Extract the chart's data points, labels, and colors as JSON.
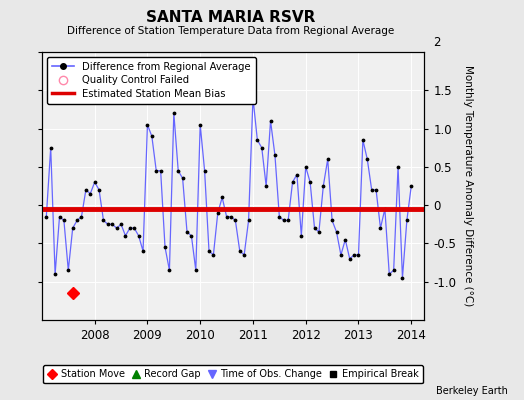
{
  "title": "SANTA MARIA RSVR",
  "subtitle": "Difference of Station Temperature Data from Regional Average",
  "ylabel": "Monthly Temperature Anomaly Difference (°C)",
  "xlim": [
    2007.0,
    2014.25
  ],
  "ylim": [
    -1.5,
    2.0
  ],
  "yticks_right": [
    -1.0,
    -0.5,
    0.0,
    0.5,
    1.0,
    1.5
  ],
  "ytick_top": 2.0,
  "bias_value": -0.05,
  "background_color": "#e8e8e8",
  "plot_bg_color": "#f0f0f0",
  "line_color": "#6666ff",
  "bias_color": "#dd0000",
  "station_move_x": 2007.58,
  "station_move_y": -1.15,
  "xtick_vals": [
    2008,
    2009,
    2010,
    2011,
    2012,
    2013,
    2014
  ],
  "time_series": {
    "x": [
      2007.0833,
      2007.1667,
      2007.25,
      2007.3333,
      2007.4167,
      2007.5,
      2007.5833,
      2007.6667,
      2007.75,
      2007.8333,
      2007.9167,
      2008.0,
      2008.0833,
      2008.1667,
      2008.25,
      2008.3333,
      2008.4167,
      2008.5,
      2008.5833,
      2008.6667,
      2008.75,
      2008.8333,
      2008.9167,
      2009.0,
      2009.0833,
      2009.1667,
      2009.25,
      2009.3333,
      2009.4167,
      2009.5,
      2009.5833,
      2009.6667,
      2009.75,
      2009.8333,
      2009.9167,
      2010.0,
      2010.0833,
      2010.1667,
      2010.25,
      2010.3333,
      2010.4167,
      2010.5,
      2010.5833,
      2010.6667,
      2010.75,
      2010.8333,
      2010.9167,
      2011.0,
      2011.0833,
      2011.1667,
      2011.25,
      2011.3333,
      2011.4167,
      2011.5,
      2011.5833,
      2011.6667,
      2011.75,
      2011.8333,
      2011.9167,
      2012.0,
      2012.0833,
      2012.1667,
      2012.25,
      2012.3333,
      2012.4167,
      2012.5,
      2012.5833,
      2012.6667,
      2012.75,
      2012.8333,
      2012.9167,
      2013.0,
      2013.0833,
      2013.1667,
      2013.25,
      2013.3333,
      2013.4167,
      2013.5,
      2013.5833,
      2013.6667,
      2013.75,
      2013.8333,
      2013.9167,
      2014.0
    ],
    "y": [
      -0.15,
      0.75,
      -0.9,
      -0.15,
      -0.2,
      -0.85,
      -0.3,
      -0.2,
      -0.15,
      0.2,
      0.15,
      0.3,
      0.2,
      -0.2,
      -0.25,
      -0.25,
      -0.3,
      -0.25,
      -0.4,
      -0.3,
      -0.3,
      -0.4,
      -0.6,
      1.05,
      0.9,
      0.45,
      0.45,
      -0.55,
      -0.85,
      1.2,
      0.45,
      0.35,
      -0.35,
      -0.4,
      -0.85,
      1.05,
      0.45,
      -0.6,
      -0.65,
      -0.1,
      0.1,
      -0.15,
      -0.15,
      -0.2,
      -0.6,
      -0.65,
      -0.2,
      1.4,
      0.85,
      0.75,
      0.25,
      1.1,
      0.65,
      -0.15,
      -0.2,
      -0.2,
      0.3,
      0.4,
      -0.4,
      0.5,
      0.3,
      -0.3,
      -0.35,
      0.25,
      0.6,
      -0.2,
      -0.35,
      -0.65,
      -0.45,
      -0.7,
      -0.65,
      -0.65,
      0.85,
      0.6,
      0.2,
      0.2,
      -0.3,
      -0.05,
      -0.9,
      -0.85,
      0.5,
      -0.95,
      -0.2,
      0.25
    ]
  }
}
